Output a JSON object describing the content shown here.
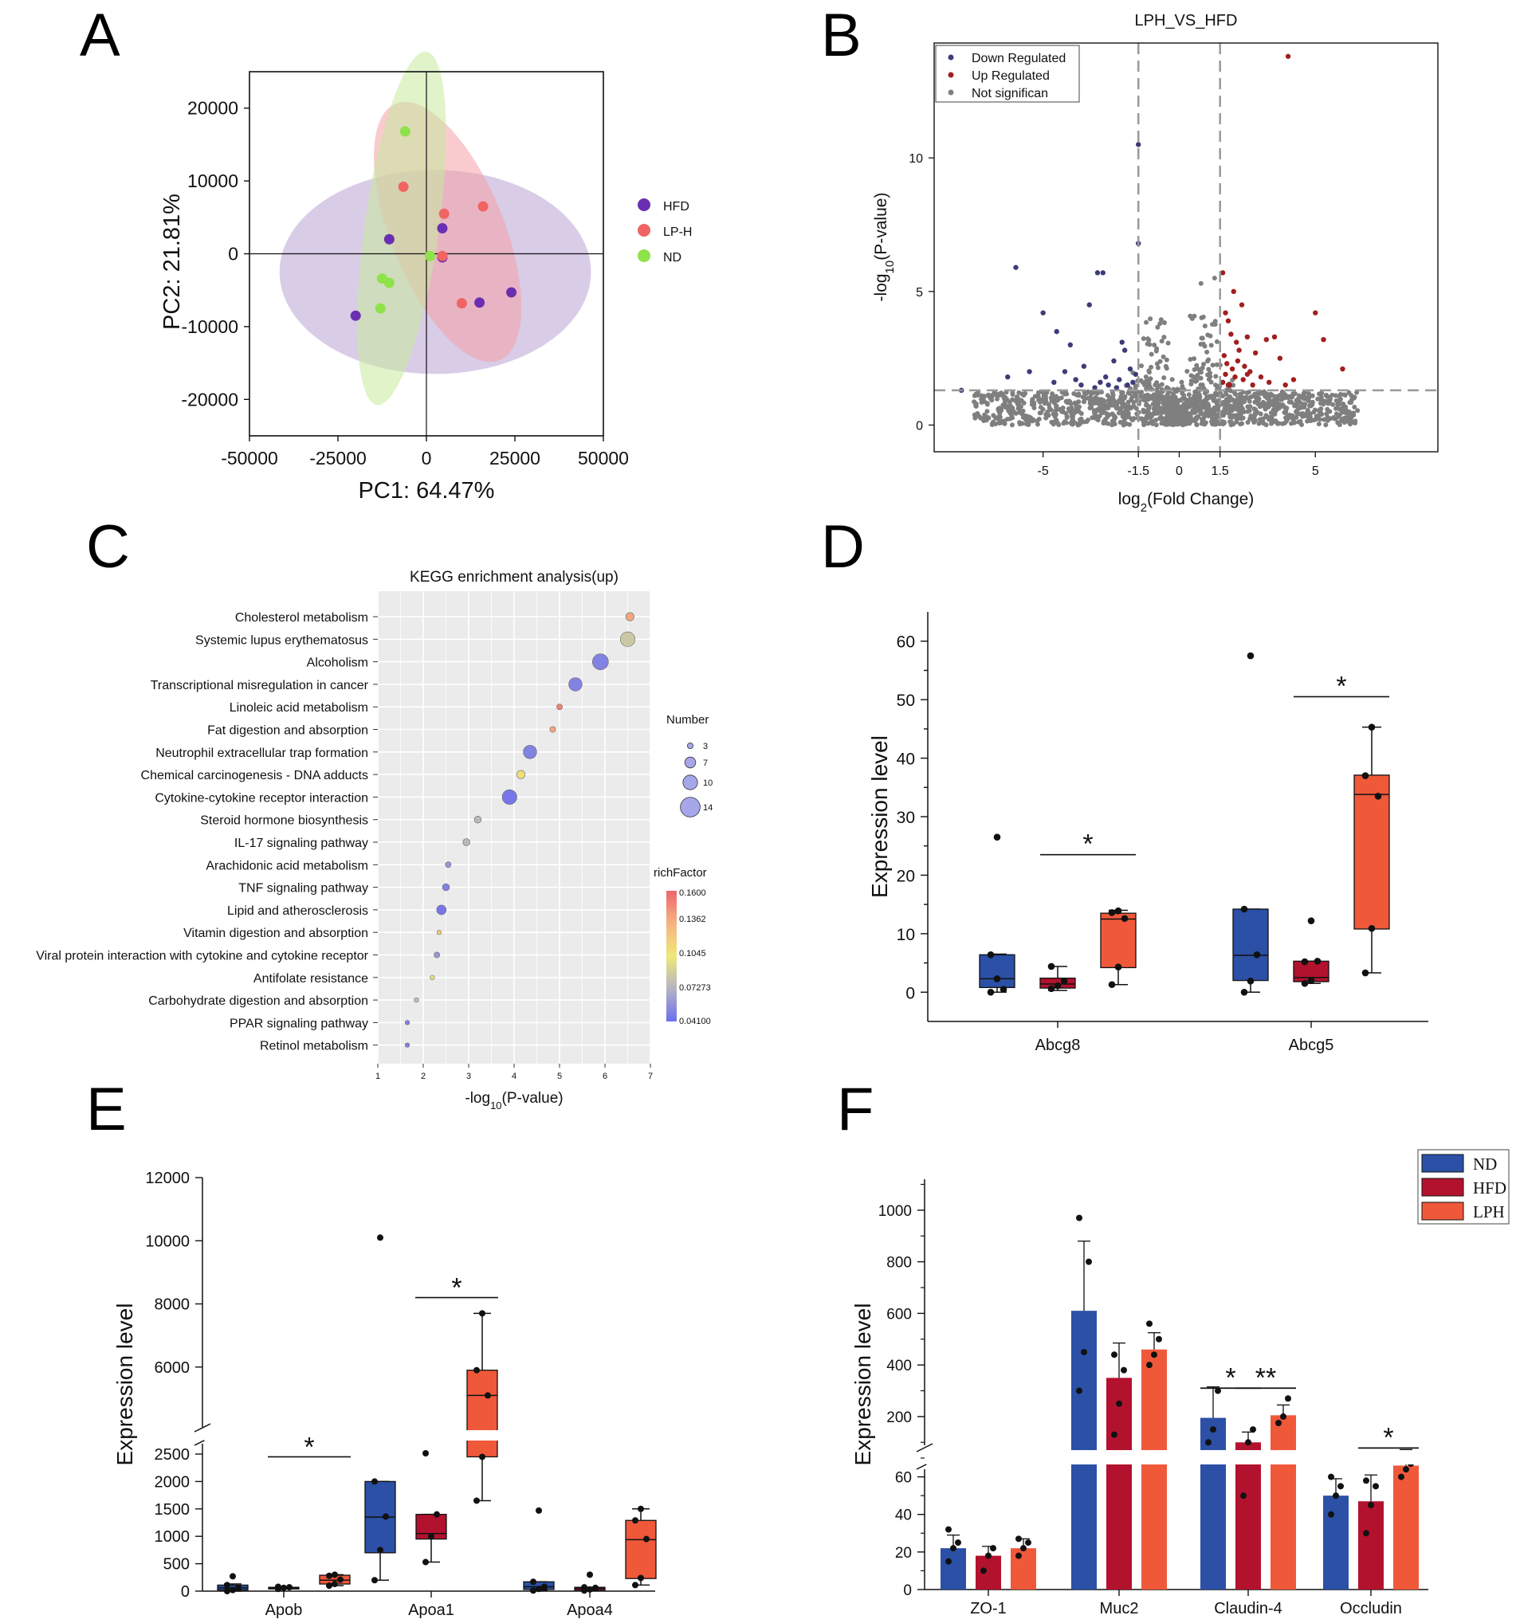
{
  "chart_data": [
    {
      "panel": "A",
      "type": "scatter",
      "subtype": "PCA with confidence ellipses",
      "xlabel": "PC1: 64.47%",
      "ylabel": "PC2: 21.81%",
      "xlim": [
        -50000,
        50000
      ],
      "ylim": [
        -25000,
        25000
      ],
      "xticks": [
        -50000,
        -25000,
        0,
        25000,
        50000
      ],
      "yticks": [
        -20000,
        -10000,
        0,
        10000,
        20000
      ],
      "xtick_labels": [
        "-50000",
        "-25000",
        "0",
        "25000",
        "50000"
      ],
      "ytick_labels": [
        "-20000",
        "-10000",
        "0",
        "10000",
        "20000"
      ],
      "series": [
        {
          "name": "HFD",
          "color": "#6a2fb0",
          "points": [
            [
              -20000,
              -8500
            ],
            [
              -10500,
              2000
            ],
            [
              4500,
              3500
            ],
            [
              4500,
              -500
            ],
            [
              15000,
              -6700
            ],
            [
              24000,
              -5300
            ]
          ],
          "ellipse": {
            "cx": 2500,
            "cy": -2500,
            "rx": 44000,
            "ry": 14000,
            "angle": 0,
            "fill": "#b9a3d3"
          }
        },
        {
          "name": "LP-H",
          "color": "#f06464",
          "points": [
            [
              -6500,
              9200
            ],
            [
              5000,
              5500
            ],
            [
              16000,
              6500
            ],
            [
              10000,
              -6800
            ],
            [
              4500,
              -300
            ]
          ],
          "ellipse": {
            "cx": 6000,
            "cy": 3000,
            "rx": 16000,
            "ry": 19000,
            "angle": -22,
            "fill": "#f4a1a5"
          }
        },
        {
          "name": "ND",
          "color": "#8ee24a",
          "points": [
            [
              -6000,
              16800
            ],
            [
              -12500,
              -3400
            ],
            [
              -10500,
              -4000
            ],
            [
              -13000,
              -7500
            ],
            [
              1000,
              -300
            ]
          ],
          "ellipse": {
            "cx": -7000,
            "cy": 3500,
            "rx": 10500,
            "ry": 24500,
            "angle": 8,
            "fill": "#c7ea9c"
          }
        }
      ]
    },
    {
      "panel": "B",
      "type": "scatter",
      "subtype": "volcano",
      "title": "LPH_VS_HFD",
      "xlabel": "log2(Fold Change)",
      "ylabel": "-log10(P-value)",
      "xlim": [
        -9,
        9.5
      ],
      "ylim": [
        -1,
        14.3
      ],
      "xticks": [
        -5,
        -1.5,
        0,
        1.5,
        5
      ],
      "yticks": [
        0,
        5,
        10
      ],
      "xtick_labels": [
        "-5",
        "-1.5",
        "0",
        "1.5",
        "5"
      ],
      "ytick_labels": [
        "0",
        "5",
        "10"
      ],
      "thresholds": {
        "x": [
          -1.5,
          1.5
        ],
        "y": 1.3
      },
      "legend": [
        "Down Regulated",
        "Up Regulated",
        "Not significan"
      ],
      "colors": {
        "down": "#3c3c7a",
        "up": "#a11f1f",
        "ns": "#7f7f7f"
      },
      "down_points": [
        [
          -6,
          5.9
        ],
        [
          -5,
          4.2
        ],
        [
          -4.5,
          3.5
        ],
        [
          -4,
          3
        ],
        [
          -3,
          5.7
        ],
        [
          -2.8,
          5.7
        ],
        [
          -5.5,
          2
        ],
        [
          -4.2,
          2
        ],
        [
          -3.3,
          4.5
        ],
        [
          -3.5,
          2.2
        ],
        [
          -2,
          2.8
        ],
        [
          -2.4,
          2.4
        ],
        [
          -2.1,
          3.1
        ],
        [
          -1.8,
          2.1
        ],
        [
          -1.6,
          1.9
        ],
        [
          -1.5,
          10.5
        ],
        [
          -1.5,
          6.8
        ],
        [
          -8,
          1.3
        ],
        [
          -6.3,
          1.8
        ],
        [
          -3.8,
          1.7
        ],
        [
          -2.9,
          1.6
        ],
        [
          -2.6,
          1.5
        ],
        [
          -2.2,
          1.7
        ],
        [
          -1.9,
          1.5
        ],
        [
          -3.1,
          1.4
        ],
        [
          -2.7,
          1.8
        ],
        [
          -1.7,
          1.6
        ],
        [
          -2.3,
          1.4
        ],
        [
          -3.6,
          1.5
        ],
        [
          -4.6,
          1.6
        ]
      ],
      "up_points": [
        [
          4,
          13.8
        ],
        [
          5,
          4.2
        ],
        [
          5.3,
          3.2
        ],
        [
          6,
          2.1
        ],
        [
          2,
          5
        ],
        [
          2.3,
          4.5
        ],
        [
          2.5,
          3.3
        ],
        [
          3.2,
          3.2
        ],
        [
          3.5,
          3.3
        ],
        [
          2.8,
          2.7
        ],
        [
          3.7,
          2.5
        ],
        [
          1.6,
          5.7
        ],
        [
          1.7,
          4.2
        ],
        [
          1.8,
          3.9
        ],
        [
          1.9,
          3.4
        ],
        [
          2.1,
          3.1
        ],
        [
          2.2,
          2.8
        ],
        [
          1.65,
          2.6
        ],
        [
          1.75,
          2.3
        ],
        [
          2.4,
          2.2
        ],
        [
          2.6,
          2
        ],
        [
          3,
          1.8
        ],
        [
          3.3,
          1.6
        ],
        [
          1.6,
          1.6
        ],
        [
          1.85,
          1.5
        ],
        [
          2.05,
          1.8
        ],
        [
          2.35,
          1.7
        ],
        [
          2.7,
          1.5
        ],
        [
          4.2,
          1.7
        ],
        [
          3.9,
          1.5
        ],
        [
          1.7,
          1.9
        ],
        [
          2.15,
          2.4
        ],
        [
          1.95,
          2.1
        ],
        [
          2.5,
          1.9
        ],
        [
          1.8,
          1.5
        ]
      ],
      "ns_visible": true
    },
    {
      "panel": "C",
      "type": "scatter",
      "subtype": "bubble",
      "title": "KEGG enrichment analysis(up)",
      "xlabel": "-log10(P-value)",
      "xlim": [
        1,
        7
      ],
      "xticks": [
        1,
        2,
        3,
        4,
        5,
        6,
        7
      ],
      "xtick_labels": [
        "1",
        "2",
        "3",
        "4",
        "5",
        "6",
        "7"
      ],
      "categories": [
        "Cholesterol metabolism",
        "Systemic lupus erythematosus",
        "Alcoholism",
        "Transcriptional misregulation in cancer",
        "Linoleic acid metabolism",
        "Fat digestion and absorption",
        "Neutrophil extracellular trap formation",
        "Chemical carcinogenesis - DNA adducts",
        "Cytokine-cytokine receptor interaction",
        "Steroid hormone biosynthesis",
        "IL-17 signaling pathway",
        "Arachidonic acid metabolism",
        "TNF signaling pathway",
        "Lipid and atherosclerosis",
        "Vitamin digestion and absorption",
        "Viral protein interaction with cytokine and cytokine receptor",
        "Antifolate resistance",
        "Carbohydrate digestion and absorption",
        "PPAR signaling pathway",
        "Retinol metabolism"
      ],
      "x": [
        6.55,
        6.5,
        5.9,
        5.35,
        5.0,
        4.85,
        4.35,
        4.15,
        3.9,
        3.2,
        2.95,
        2.55,
        2.5,
        2.4,
        2.35,
        2.3,
        2.2,
        1.85,
        1.65,
        1.65
      ],
      "number": [
        5,
        10,
        11,
        9,
        3,
        3,
        9,
        5,
        10,
        4,
        4,
        3,
        4,
        6,
        2,
        3,
        2,
        2,
        2,
        2
      ],
      "rich_factor": [
        0.14,
        0.085,
        0.05,
        0.05,
        0.15,
        0.14,
        0.05,
        0.11,
        0.045,
        0.075,
        0.075,
        0.06,
        0.05,
        0.045,
        0.12,
        0.06,
        0.1,
        0.08,
        0.05,
        0.05
      ],
      "size_legend_title": "Number",
      "size_legend": [
        3,
        7,
        10,
        14
      ],
      "color_legend_title": "richFactor",
      "color_legend_labels": [
        "0.1600",
        "0.1362",
        "0.1045",
        "0.07273",
        "0.04100"
      ]
    },
    {
      "panel": "D",
      "type": "box",
      "ylabel": "Expression level",
      "ylim": [
        -5,
        65
      ],
      "yticks": [
        0,
        10,
        20,
        30,
        40,
        50,
        60
      ],
      "ytick_labels": [
        "0",
        "10",
        "20",
        "30",
        "40",
        "50",
        "60"
      ],
      "categories": [
        "Abcg8",
        "Abcg5"
      ],
      "groups": [
        "ND",
        "HFD",
        "LPH"
      ],
      "colors": [
        "#2b50a6",
        "#b3122e",
        "#f0583a"
      ],
      "boxes": [
        [
          {
            "q1": 0.8,
            "median": 2.3,
            "q3": 6.4,
            "wlo": 0,
            "whi": 6.5,
            "points": [
              0,
              2.3,
              0.5,
              6.4,
              26.5
            ]
          },
          {
            "q1": 0.7,
            "median": 1.4,
            "q3": 2.4,
            "wlo": 0.3,
            "whi": 4.4,
            "points": [
              0.6,
              1.1,
              1.9,
              4.4
            ]
          },
          {
            "q1": 4.2,
            "median": 12.5,
            "q3": 13.5,
            "wlo": 1.3,
            "whi": 14,
            "points": [
              1.3,
              4.3,
              12.6,
              13.6,
              13.9
            ]
          }
        ],
        [
          {
            "q1": 2,
            "median": 6.3,
            "q3": 14.2,
            "wlo": 0,
            "whi": 14.2,
            "points": [
              0,
              1.9,
              6.4,
              14.2,
              57.5
            ]
          },
          {
            "q1": 1.8,
            "median": 2.5,
            "q3": 5.3,
            "wlo": 1.5,
            "whi": 5.3,
            "points": [
              1.5,
              2,
              5.3,
              5.2,
              12.2
            ]
          },
          {
            "q1": 10.8,
            "median": 33.8,
            "q3": 37.1,
            "wlo": 3.3,
            "whi": 45.3,
            "points": [
              3.3,
              10.9,
              33.5,
              37,
              45.3
            ]
          }
        ]
      ],
      "significance": [
        {
          "label": "*",
          "category": 0,
          "y": 23.5
        },
        {
          "label": "*",
          "category": 1,
          "y": 50.5
        }
      ]
    },
    {
      "panel": "E",
      "type": "box",
      "ylabel": "Expression level",
      "axis_break": true,
      "lower_ylim": [
        0,
        2500
      ],
      "upper_ylim": [
        4000,
        12000
      ],
      "lower_yticks": [
        0,
        500,
        1000,
        1500,
        2000,
        2500
      ],
      "upper_yticks": [
        6000,
        8000,
        10000,
        12000
      ],
      "lower_ytick_labels": [
        "0",
        "500",
        "1000",
        "1500",
        "2000",
        "2500"
      ],
      "upper_ytick_labels": [
        "6000",
        "8000",
        "10000",
        "12000"
      ],
      "categories": [
        "Apob",
        "Apoa1",
        "Apoa4"
      ],
      "groups": [
        "ND",
        "HFD",
        "LPH"
      ],
      "colors": [
        "#2b50a6",
        "#b3122e",
        "#f0583a"
      ],
      "boxes": [
        [
          {
            "q1": 20,
            "median": 60,
            "q3": 110,
            "wlo": 0,
            "whi": 130,
            "points": [
              0,
              20,
              60,
              110,
              270
            ]
          },
          {
            "q1": 40,
            "median": 60,
            "q3": 70,
            "wlo": 40,
            "whi": 80,
            "points": [
              40,
              60,
              70,
              80
            ]
          },
          {
            "q1": 130,
            "median": 200,
            "q3": 290,
            "wlo": 100,
            "whi": 300,
            "points": [
              100,
              130,
              210,
              280,
              300
            ]
          }
        ],
        [
          {
            "q1": 700,
            "median": 1350,
            "q3": 2000,
            "wlo": 200,
            "whi": 2000,
            "points": [
              200,
              750,
              1360,
              2000,
              10100
            ]
          },
          {
            "q1": 950,
            "median": 1050,
            "q3": 1400,
            "wlo": 530,
            "whi": 1400,
            "points": [
              530,
              1000,
              1400,
              2550
            ]
          },
          {
            "q1": 2450,
            "median": 5100,
            "q3": 5900,
            "wlo": 1650,
            "whi": 7700,
            "points": [
              1650,
              2450,
              5100,
              5900,
              7700
            ]
          }
        ],
        [
          {
            "q1": 30,
            "median": 80,
            "q3": 170,
            "wlo": 10,
            "whi": 170,
            "points": [
              10,
              40,
              80,
              170,
              1470
            ]
          },
          {
            "q1": 20,
            "median": 50,
            "q3": 70,
            "wlo": 10,
            "whi": 70,
            "points": [
              10,
              30,
              60,
              70,
              300
            ]
          },
          {
            "q1": 230,
            "median": 940,
            "q3": 1290,
            "wlo": 110,
            "whi": 1500,
            "points": [
              110,
              240,
              950,
              1290,
              1500
            ]
          }
        ]
      ],
      "significance": [
        {
          "label": "*",
          "category": 0,
          "y": 2450
        },
        {
          "label": "*",
          "category": 1,
          "y": 8200
        }
      ]
    },
    {
      "panel": "F",
      "type": "bar",
      "ylabel": "Expression level",
      "axis_break": true,
      "lower_ylim": [
        0,
        70
      ],
      "upper_ylim": [
        70,
        1120
      ],
      "lower_yticks": [
        0,
        20,
        40,
        60
      ],
      "upper_yticks": [
        200,
        400,
        600,
        800,
        1000
      ],
      "lower_ytick_labels": [
        "0",
        "20",
        "40",
        "60"
      ],
      "upper_ytick_labels": [
        "200",
        "400",
        "600",
        "800",
        "1000"
      ],
      "categories": [
        "ZO-1",
        "Muc2",
        "Claudin-4",
        "Occludin"
      ],
      "series": [
        {
          "name": "ND",
          "color": "#2b50a6",
          "values": [
            22,
            610,
            195,
            50
          ],
          "errors": [
            7,
            270,
            120,
            9
          ]
        },
        {
          "name": "HFD",
          "color": "#b3122e",
          "values": [
            18,
            350,
            100,
            47
          ],
          "errors": [
            5,
            135,
            40,
            14
          ]
        },
        {
          "name": "LPH",
          "color": "#f0583a",
          "values": [
            22,
            460,
            205,
            66
          ],
          "errors": [
            5,
            65,
            40,
            6
          ]
        }
      ],
      "points": [
        [
          [
            15,
            22,
            25,
            32
          ],
          [
            10,
            18,
            22
          ],
          [
            18,
            22,
            25,
            27
          ]
        ],
        [
          [
            300,
            450,
            800,
            970
          ],
          [
            130,
            250,
            380,
            440
          ],
          [
            400,
            440,
            500,
            560
          ]
        ],
        [
          [
            100,
            150,
            300
          ],
          [
            50,
            100,
            150
          ],
          [
            175,
            200,
            270
          ]
        ],
        [
          [
            40,
            50,
            55,
            60
          ],
          [
            30,
            45,
            55,
            58
          ],
          [
            60,
            64,
            67,
            70
          ]
        ]
      ],
      "legend": [
        "ND",
        "HFD",
        "LPH"
      ],
      "significance": [
        {
          "label": "*",
          "from": [
            2,
            0
          ],
          "to": [
            2,
            1
          ],
          "y": 310
        },
        {
          "label": "**",
          "from": [
            2,
            1
          ],
          "to": [
            2,
            2
          ],
          "y": 310
        },
        {
          "label": "*",
          "from": [
            3,
            1
          ],
          "to": [
            3,
            2
          ],
          "y": 78
        }
      ]
    }
  ],
  "panels": {
    "a": {
      "letter": "A"
    },
    "b": {
      "letter": "B"
    },
    "c": {
      "letter": "C"
    },
    "d": {
      "letter": "D"
    },
    "e": {
      "letter": "E"
    },
    "f": {
      "letter": "F"
    }
  }
}
